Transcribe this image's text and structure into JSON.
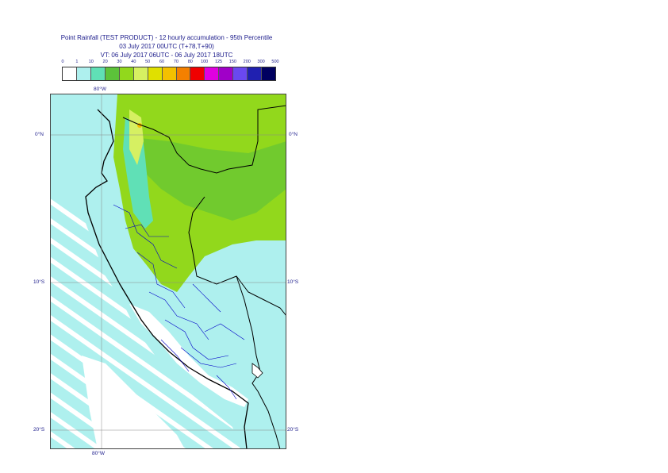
{
  "title": {
    "line1": "Point Rainfall (TEST PRODUCT) - 12 hourly accumulation - 95th Percentile",
    "line2": "03 July 2017 00UTC (T+78,T+90)",
    "line3": "VT: 06 July 2017 06UTC - 06 July 2017 18UTC"
  },
  "legend": {
    "thresholds": [
      "0",
      "1",
      "10",
      "20",
      "30",
      "40",
      "50",
      "60",
      "70",
      "80",
      "100",
      "125",
      "150",
      "200",
      "300",
      "500"
    ],
    "colors": [
      "#ffffff",
      "#aef0ee",
      "#60e0b6",
      "#5cc23a",
      "#92d81c",
      "#d6f062",
      "#e0e000",
      "#f4c000",
      "#f48000",
      "#f00000",
      "#e000e0",
      "#a000c8",
      "#6a48f0",
      "#2020b0",
      "#000060"
    ]
  },
  "axes": {
    "top_lon": "80°W",
    "bottom_lon": "80°W",
    "lat_0_left": "0°N",
    "lat_0_right": "0°N",
    "lat_10_left": "10°S",
    "lat_10_right": "10°S",
    "lat_20_left": "20°S",
    "lat_20_right": "20°S"
  },
  "map": {
    "ocean_color": "#aef0ee",
    "land_color": "#aef0ee",
    "dry_color": "#ffffff",
    "rain_low_color": "#60e0b6",
    "rain_mid_color": "#92d81c",
    "rain_high_color": "#d6f062",
    "peak_color": "#f4c000",
    "coast_color": "#000000",
    "border_color": "#0000c8"
  }
}
